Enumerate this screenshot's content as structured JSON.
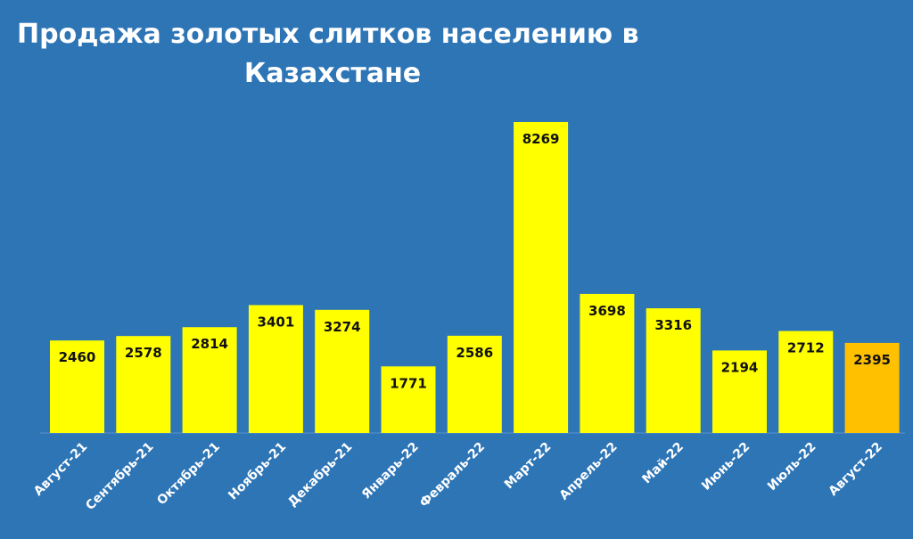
{
  "chart_data": {
    "type": "bar",
    "title": "Продажа золотых слитков населению в Казахстане",
    "categories": [
      "Август-21",
      "Сентябрь-21",
      "Октябрь-21",
      "Ноябрь-21",
      "Декабрь-21",
      "Январь-22",
      "Февраль-22",
      "Март-22",
      "Апрель-22",
      "Май-22",
      "Июнь-22",
      "Июль-22",
      "Август-22"
    ],
    "values": [
      2460,
      2578,
      2814,
      3401,
      3274,
      1771,
      2586,
      8269,
      3698,
      3316,
      2194,
      2712,
      2395
    ],
    "colors": [
      "#ffff00",
      "#ffff00",
      "#ffff00",
      "#ffff00",
      "#ffff00",
      "#ffff00",
      "#ffff00",
      "#ffff00",
      "#ffff00",
      "#ffff00",
      "#ffff00",
      "#ffff00",
      "#ffc000"
    ]
  }
}
